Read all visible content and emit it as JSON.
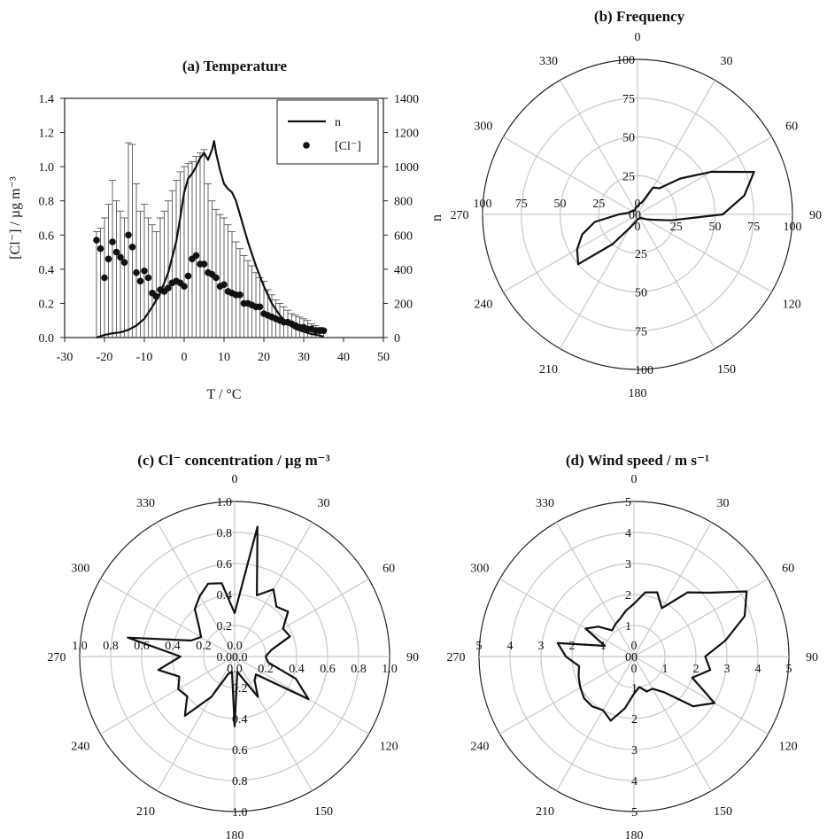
{
  "chart_data": [
    {
      "id": "a",
      "type": "scatter",
      "title": "(a) Temperature",
      "xlabel": "T / °C",
      "ylabel_left": "[Cl⁻] / µg m⁻³",
      "ylabel_right": "n",
      "xlim": [
        -30,
        50
      ],
      "xticks": [
        "-30",
        "-20",
        "-10",
        "0",
        "10",
        "20",
        "30",
        "40",
        "50"
      ],
      "ylim_left": [
        0,
        1.4
      ],
      "yticks_left": [
        "0.0",
        "0.2",
        "0.4",
        "0.6",
        "0.8",
        "1.0",
        "1.2",
        "1.4"
      ],
      "ylim_right": [
        0,
        1400
      ],
      "yticks_right": [
        "0",
        "200",
        "400",
        "600",
        "800",
        "1000",
        "1200",
        "1400"
      ],
      "legend": {
        "position": "top-right",
        "entries": [
          "n",
          "[Cl⁻]"
        ]
      },
      "series": [
        {
          "name": "n",
          "kind": "line",
          "axis": "right",
          "x": [
            -22,
            -20,
            -18,
            -16,
            -14,
            -12,
            -10,
            -8,
            -6,
            -4,
            -2,
            -1,
            0,
            1,
            2,
            3,
            4,
            5,
            6,
            7,
            7.5,
            8,
            9,
            10,
            11,
            12,
            13,
            14,
            16,
            18,
            20,
            22,
            24,
            26,
            28,
            30,
            32,
            34,
            35
          ],
          "y": [
            0,
            15,
            25,
            30,
            45,
            70,
            110,
            180,
            260,
            380,
            560,
            700,
            850,
            930,
            960,
            1000,
            1050,
            1080,
            1040,
            1100,
            1150,
            1080,
            980,
            900,
            870,
            850,
            800,
            720,
            560,
            420,
            300,
            200,
            130,
            80,
            50,
            35,
            20,
            12,
            5
          ]
        },
        {
          "name": "[Cl⁻]",
          "kind": "scatter",
          "axis": "left",
          "x": [
            -22,
            -21,
            -20,
            -19,
            -18,
            -17,
            -16,
            -15,
            -14,
            -13,
            -12,
            -11,
            -10,
            -9,
            -8,
            -7,
            -6,
            -5,
            -4,
            -3,
            -2,
            -1,
            0,
            1,
            2,
            3,
            4,
            5,
            6,
            7,
            8,
            9,
            10,
            11,
            12,
            13,
            14,
            15,
            16,
            17,
            18,
            19,
            20,
            21,
            22,
            23,
            24,
            25,
            26,
            27,
            28,
            29,
            30,
            31,
            32,
            33,
            34,
            35
          ],
          "y": [
            0.57,
            0.52,
            0.35,
            0.46,
            0.56,
            0.5,
            0.47,
            0.44,
            0.6,
            0.53,
            0.38,
            0.33,
            0.39,
            0.35,
            0.26,
            0.24,
            0.28,
            0.27,
            0.29,
            0.32,
            0.33,
            0.32,
            0.3,
            0.36,
            0.46,
            0.48,
            0.43,
            0.43,
            0.38,
            0.37,
            0.35,
            0.3,
            0.31,
            0.27,
            0.26,
            0.25,
            0.25,
            0.2,
            0.2,
            0.19,
            0.18,
            0.18,
            0.14,
            0.13,
            0.12,
            0.11,
            0.1,
            0.09,
            0.09,
            0.08,
            0.07,
            0.06,
            0.06,
            0.05,
            0.05,
            0.04,
            0.04,
            0.04
          ],
          "error_upper": [
            0.62,
            0.64,
            0.7,
            0.78,
            0.92,
            0.8,
            0.74,
            0.7,
            1.14,
            1.13,
            0.9,
            0.74,
            0.78,
            0.7,
            0.66,
            0.62,
            0.7,
            0.74,
            0.8,
            0.86,
            0.92,
            0.97,
            1.0,
            1.02,
            1.03,
            1.06,
            1.08,
            1.1,
            0.9,
            0.8,
            0.75,
            0.72,
            0.7,
            0.66,
            0.62,
            0.56,
            0.52,
            0.48,
            0.45,
            0.42,
            0.38,
            0.35,
            0.33,
            0.28,
            0.25,
            0.22,
            0.2,
            0.18,
            0.16,
            0.14,
            0.13,
            0.12,
            0.11,
            0.1,
            0.08,
            0.07,
            0.06,
            0.05
          ]
        }
      ]
    },
    {
      "id": "b",
      "type": "polar",
      "title": "(b) Frequency",
      "rmax": 100,
      "radial_ticks": [
        "0",
        "25",
        "50",
        "75",
        "100"
      ],
      "angle_labels": [
        "0",
        "30",
        "60",
        "90",
        "120",
        "150",
        "180",
        "210",
        "240",
        "270",
        "300",
        "330"
      ],
      "series": [
        {
          "angles": [
            0,
            10,
            20,
            30,
            40,
            50,
            60,
            70,
            80,
            90,
            100,
            110,
            120,
            130,
            140,
            150,
            160,
            170,
            180,
            190,
            200,
            210,
            220,
            230,
            240,
            250,
            260,
            270,
            280,
            290,
            300,
            310,
            320,
            330,
            340,
            350
          ],
          "values": [
            5,
            7,
            8,
            20,
            22,
            36,
            55,
            80,
            70,
            55,
            22,
            10,
            6,
            4,
            3,
            3,
            3,
            3,
            3,
            4,
            6,
            10,
            25,
            50,
            45,
            38,
            28,
            12,
            6,
            5,
            4,
            4,
            3,
            3,
            4,
            5
          ]
        }
      ]
    },
    {
      "id": "c",
      "type": "polar",
      "title": "(c) Cl⁻ concentration / µg m⁻³",
      "rmax": 1.0,
      "radial_ticks": [
        "0.0",
        "0.2",
        "0.4",
        "0.6",
        "0.8",
        "1.0"
      ],
      "angle_labels": [
        "0",
        "30",
        "60",
        "90",
        "120",
        "150",
        "180",
        "210",
        "240",
        "270",
        "300",
        "330"
      ],
      "series": [
        {
          "angles": [
            0,
            10,
            20,
            30,
            40,
            50,
            60,
            70,
            80,
            90,
            100,
            110,
            120,
            130,
            140,
            150,
            160,
            170,
            180,
            190,
            200,
            210,
            220,
            230,
            240,
            250,
            260,
            270,
            280,
            290,
            300,
            310,
            320,
            330,
            340,
            350
          ],
          "values": [
            0.28,
            0.85,
            0.42,
            0.5,
            0.42,
            0.45,
            0.36,
            0.38,
            0.24,
            0.2,
            0.22,
            0.42,
            0.55,
            0.18,
            0.2,
            0.3,
            0.15,
            0.1,
            0.45,
            0.1,
            0.12,
            0.3,
            0.5,
            0.4,
            0.42,
            0.38,
            0.5,
            0.35,
            0.7,
            0.3,
            0.25,
            0.3,
            0.4,
            0.45,
            0.5,
            0.48
          ]
        }
      ]
    },
    {
      "id": "d",
      "type": "polar",
      "title": "(d) Wind speed / m s⁻¹",
      "rmax": 5,
      "radial_ticks": [
        "0",
        "1",
        "2",
        "3",
        "4",
        "5"
      ],
      "angle_labels": [
        "0",
        "30",
        "60",
        "90",
        "120",
        "150",
        "180",
        "210",
        "240",
        "270",
        "300",
        "330"
      ],
      "series": [
        {
          "angles": [
            0,
            10,
            20,
            30,
            40,
            50,
            60,
            70,
            80,
            90,
            100,
            110,
            120,
            130,
            140,
            150,
            160,
            170,
            180,
            190,
            200,
            210,
            220,
            230,
            240,
            250,
            260,
            270,
            280,
            290,
            300,
            310,
            320,
            330,
            340,
            350
          ],
          "values": [
            1.7,
            2.1,
            2.2,
            1.8,
            2.7,
            3.2,
            4.2,
            3.8,
            3.0,
            2.3,
            2.5,
            2.0,
            3.0,
            2.5,
            1.5,
            1.2,
            1.2,
            1.0,
            1.2,
            1.7,
            2.2,
            2.0,
            2.1,
            2.1,
            2.0,
            1.9,
            1.8,
            2.2,
            2.5,
            1.0,
            1.8,
            1.5,
            1.1,
            1.2,
            1.3,
            1.5
          ]
        }
      ]
    }
  ]
}
